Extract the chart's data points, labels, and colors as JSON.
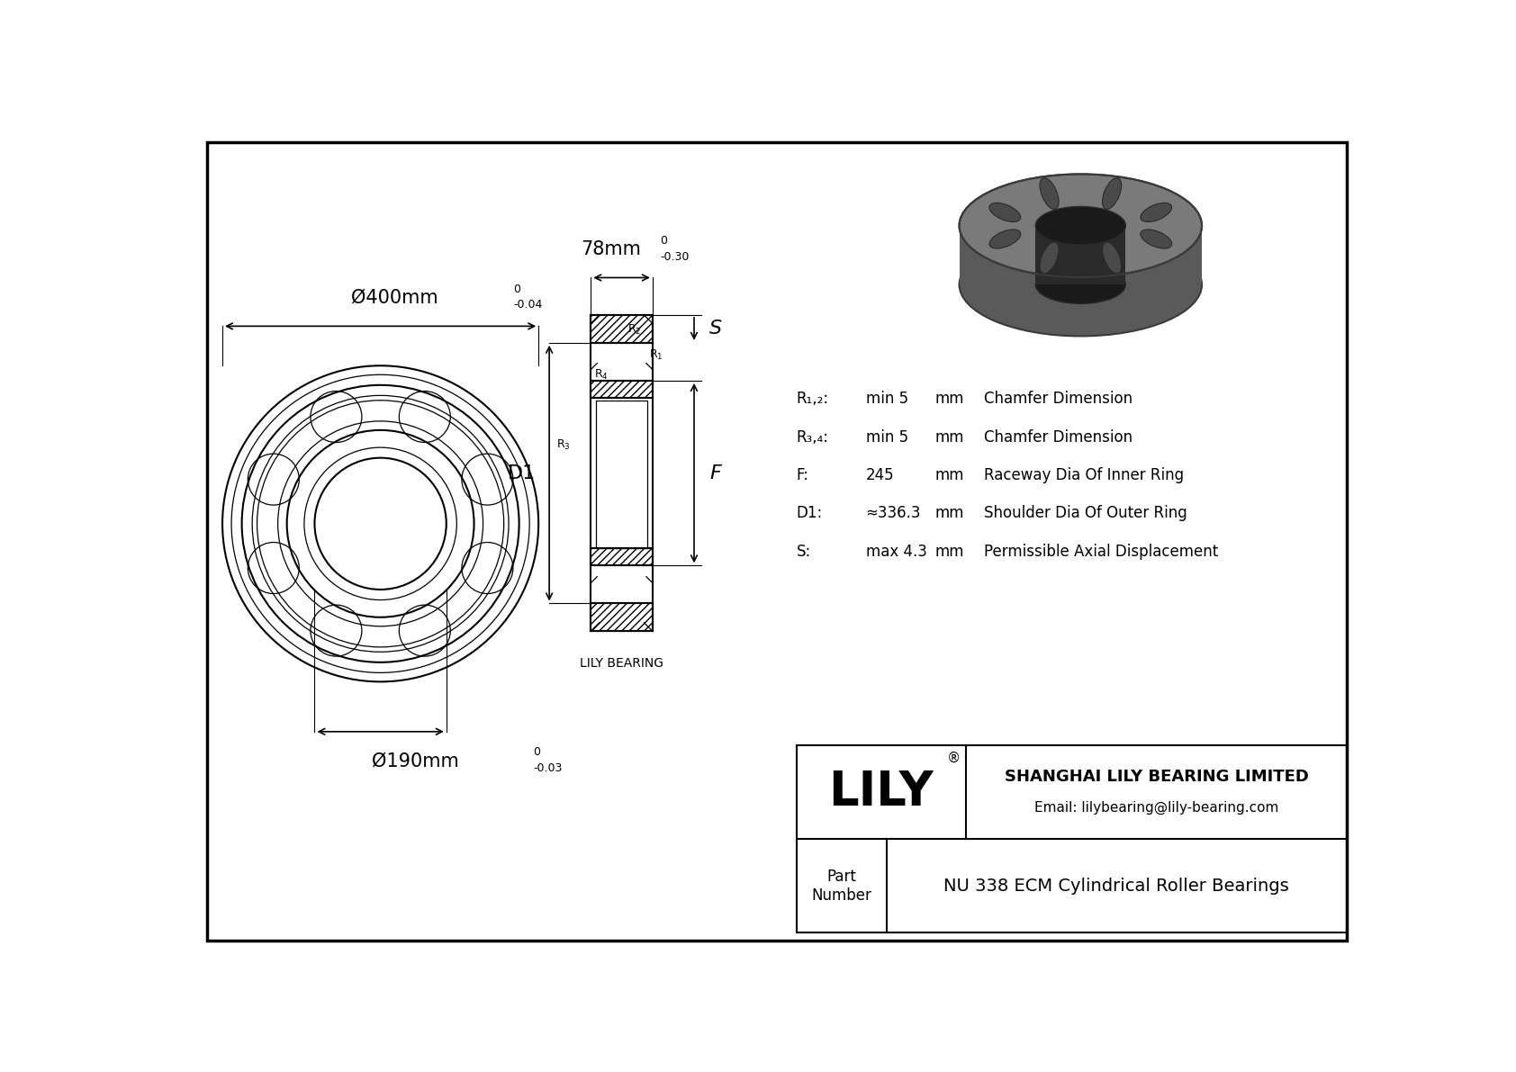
{
  "bg_color": "#ffffff",
  "line_color": "#000000",
  "company": "SHANGHAI LILY BEARING LIMITED",
  "email": "Email: lilybearing@lily-bearing.com",
  "part_label": "Part\nNumber",
  "part_number": "NU 338 ECM Cylindrical Roller Bearings",
  "lily_brand": "LILY",
  "dim_outer": "Ø400mm",
  "dim_outer_tol_top": "0",
  "dim_outer_tol_bot": "-0.04",
  "dim_inner": "Ø190mm",
  "dim_inner_tol_top": "0",
  "dim_inner_tol_bot": "-0.03",
  "dim_width": "78mm",
  "dim_width_tol_top": "0",
  "dim_width_tol_bot": "-0.30",
  "label_D1": "D1",
  "label_F": "F",
  "label_S": "S",
  "specs": [
    [
      "R₁,₂:",
      "min 5",
      "mm",
      "Chamfer Dimension"
    ],
    [
      "R₃,₄:",
      "min 5",
      "mm",
      "Chamfer Dimension"
    ],
    [
      "F:",
      "245",
      "mm",
      "Raceway Dia Of Inner Ring"
    ],
    [
      "D1:",
      "≈336.3",
      "mm",
      "Shoulder Dia Of Outer Ring"
    ],
    [
      "S:",
      "max 4.3",
      "mm",
      "Permissible Axial Displacement"
    ]
  ],
  "lily_bearing_label": "LILY BEARING"
}
